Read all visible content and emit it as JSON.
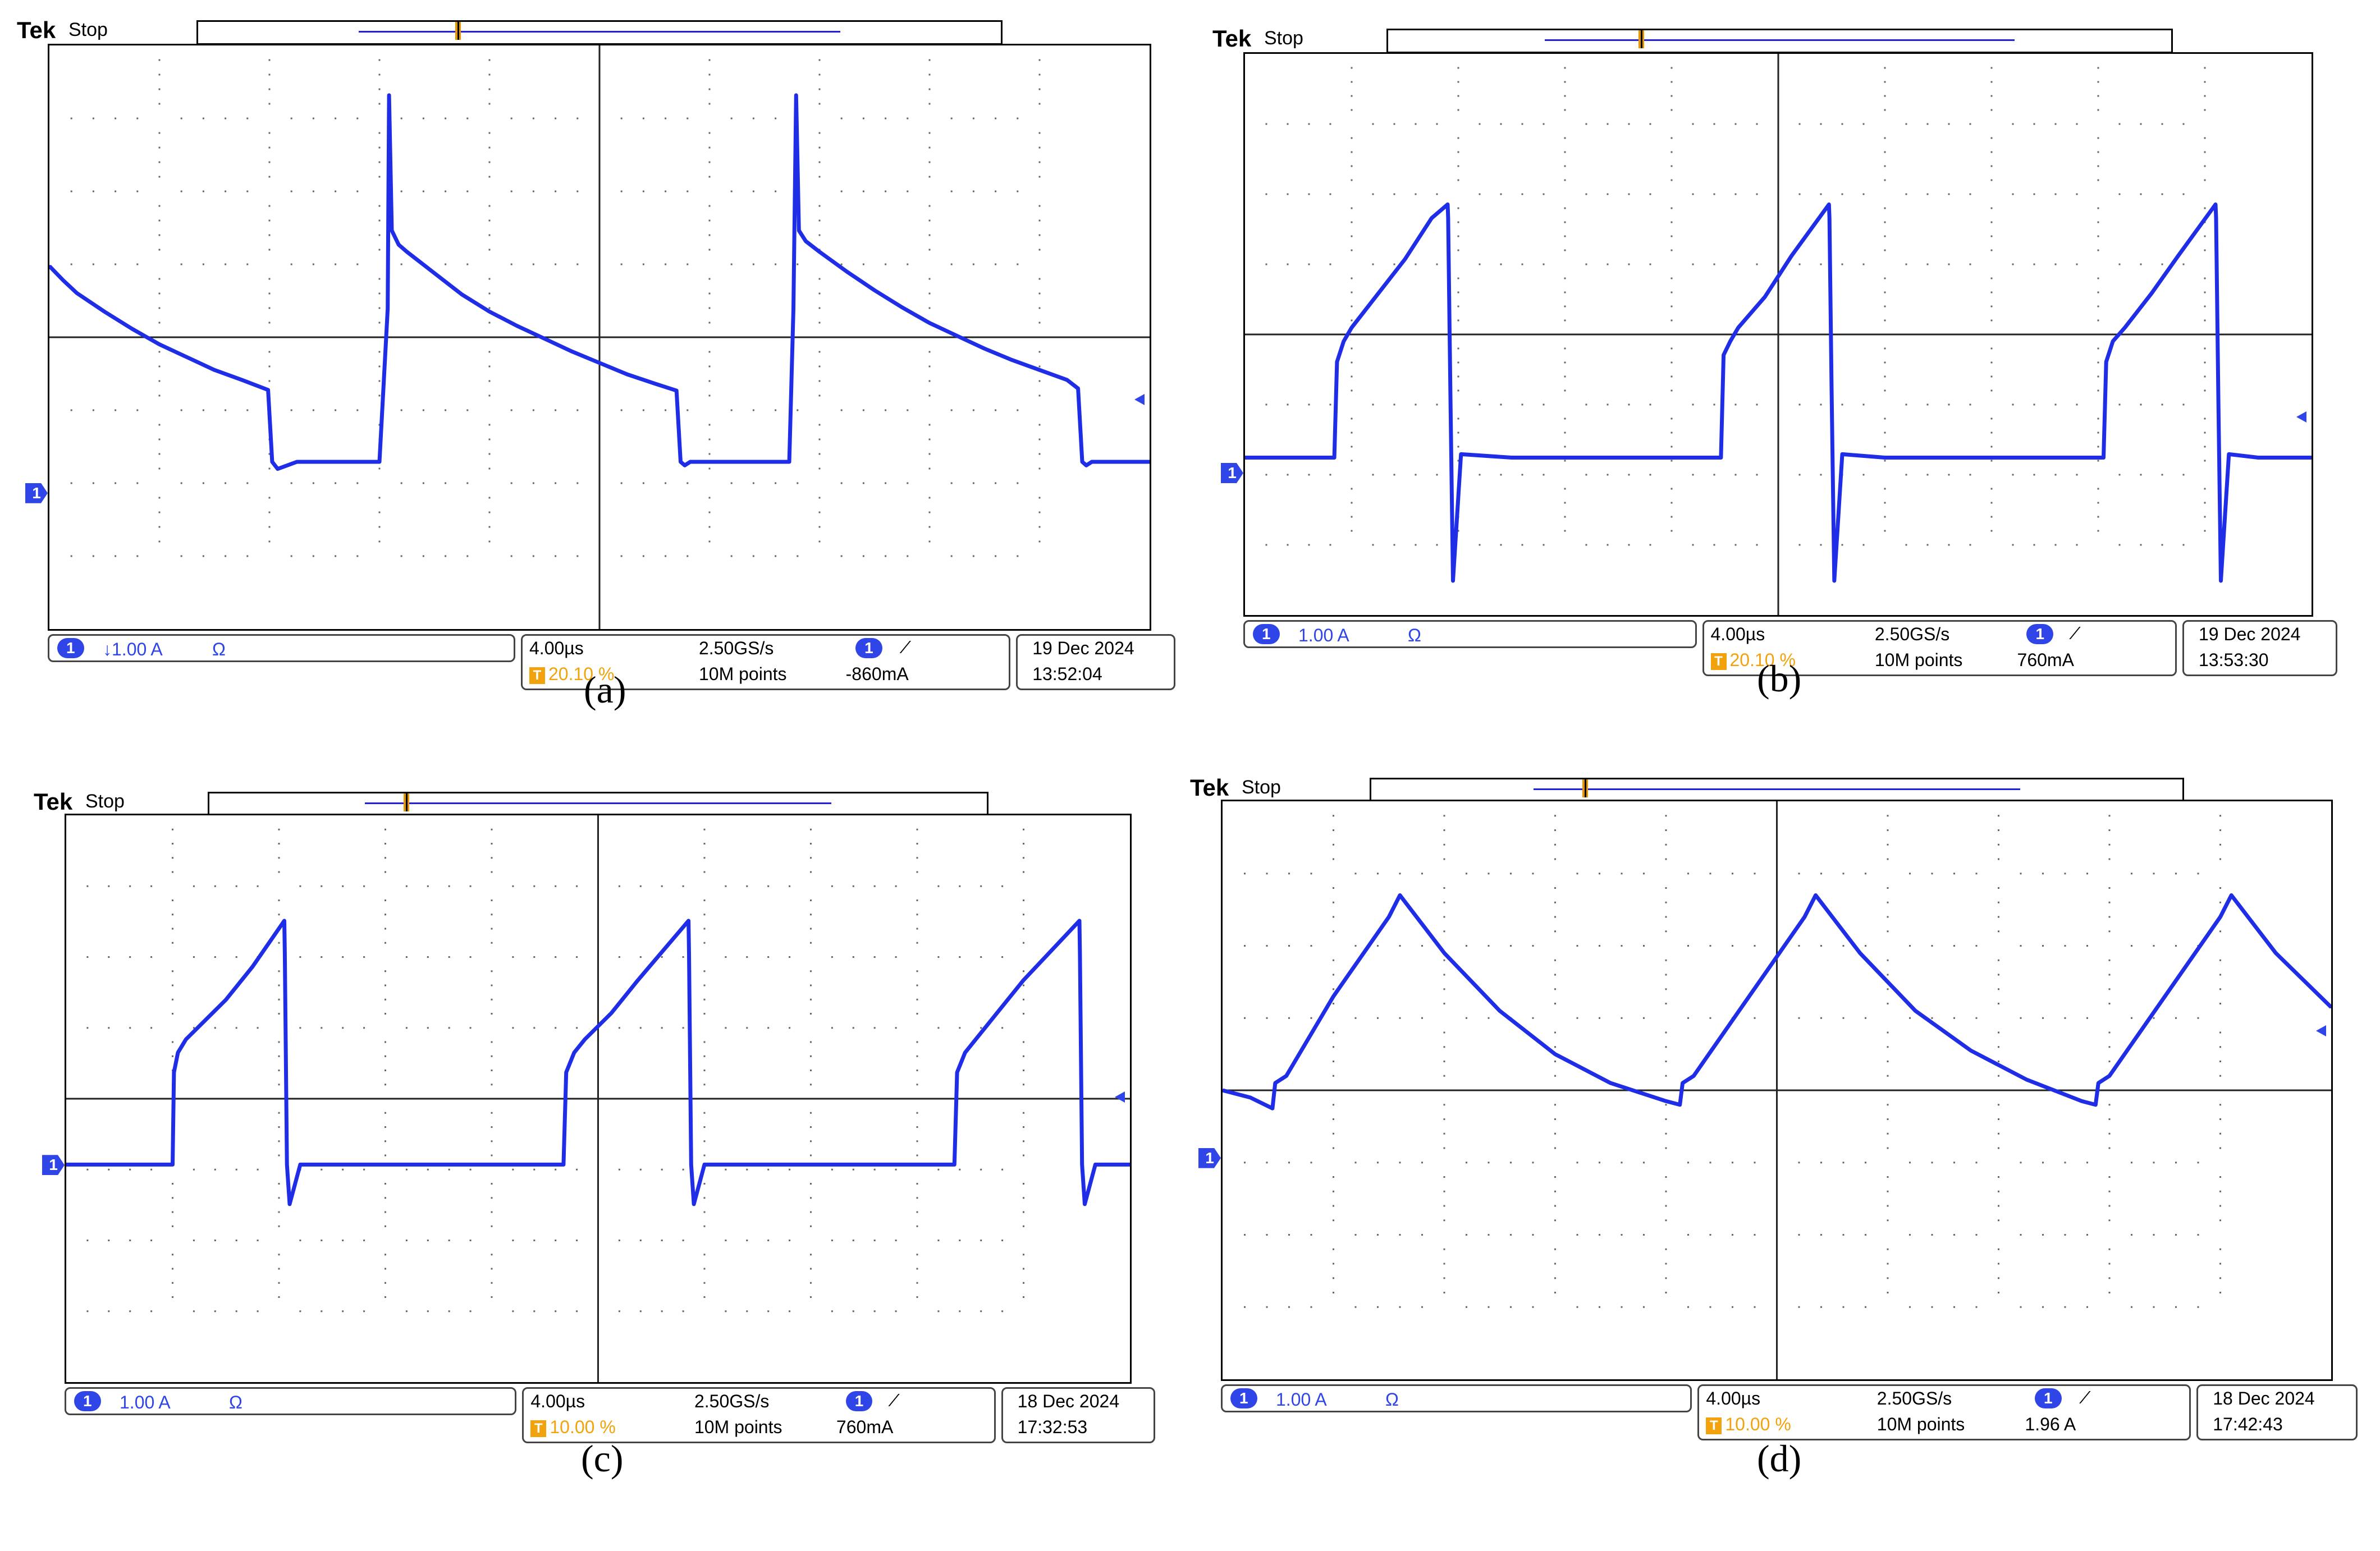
{
  "chart_data": [
    {
      "type": "line",
      "caption": "(a)",
      "header": {
        "brand": "Tek",
        "state": "Stop"
      },
      "trigger_marker": "T",
      "channel_marker": "1",
      "ch_readout": {
        "channel": "1",
        "scale": "↓1.00 A",
        "coupling": "Ω"
      },
      "timebase": {
        "time_div": "4.00µs",
        "trigger_pos": "20.10 %",
        "sample_rate": "2.50GS/s",
        "record": "10M points"
      },
      "trigger": {
        "channel": "1",
        "slope_icon": "rising-edge",
        "level": "-860mA"
      },
      "timestamp": {
        "date": "19 Dec  2024",
        "time": "13:52:04"
      },
      "xlim": [
        0,
        40
      ],
      "ylim": [
        -4.3,
        3.9
      ],
      "x": [
        0,
        0.5,
        1,
        2,
        3,
        4,
        5,
        6,
        7,
        7.95,
        8.1,
        8.3,
        9,
        10,
        11,
        12,
        12.3,
        12.35,
        12.45,
        12.7,
        13,
        14,
        15,
        16,
        17,
        18,
        19,
        20,
        21,
        22,
        22.8,
        22.95,
        23.1,
        23.3,
        24,
        25,
        26,
        26.9,
        27.05,
        27.15,
        27.25,
        27.5,
        28,
        29,
        30,
        31,
        32,
        33,
        34,
        35,
        36,
        37,
        37.4,
        37.55,
        37.7,
        37.9,
        38.5,
        40
      ],
      "y": [
        0.8,
        0.6,
        0.42,
        0.16,
        -0.08,
        -0.3,
        -0.48,
        -0.66,
        -0.8,
        -0.94,
        -1.95,
        -2.05,
        -1.95,
        -1.95,
        -1.95,
        -1.95,
        0.2,
        3.2,
        1.3,
        1.1,
        1.0,
        0.7,
        0.4,
        0.16,
        -0.04,
        -0.22,
        -0.4,
        -0.56,
        -0.72,
        -0.85,
        -0.95,
        -1.95,
        -2.0,
        -1.95,
        -1.95,
        -1.95,
        -1.95,
        -1.95,
        0.2,
        3.2,
        1.3,
        1.15,
        1.0,
        0.72,
        0.46,
        0.22,
        0.0,
        -0.18,
        -0.36,
        -0.52,
        -0.66,
        -0.8,
        -0.92,
        -1.95,
        -2.0,
        -1.95,
        -1.95,
        -1.95
      ]
    },
    {
      "type": "line",
      "caption": "(b)",
      "header": {
        "brand": "Tek",
        "state": "Stop"
      },
      "trigger_marker": "T",
      "channel_marker": "1",
      "ch_readout": {
        "channel": "1",
        "scale": "1.00 A",
        "coupling": "Ω"
      },
      "timebase": {
        "time_div": "4.00µs",
        "trigger_pos": "20.10 %",
        "sample_rate": "2.50GS/s",
        "record": "10M points"
      },
      "trigger": {
        "channel": "1",
        "slope_icon": "rising-edge",
        "level": "760mA"
      },
      "timestamp": {
        "date": "19 Dec  2024",
        "time": "13:53:30"
      },
      "xlim": [
        0,
        40
      ],
      "ylim": [
        -4.3,
        3.9
      ],
      "x": [
        0,
        3.35,
        3.45,
        3.7,
        4,
        5,
        6,
        7,
        7.6,
        7.62,
        7.7,
        7.8,
        8.1,
        10,
        12,
        14,
        17.85,
        17.95,
        18.2,
        18.5,
        19.5,
        20.5,
        21.9,
        21.92,
        22.0,
        22.1,
        22.4,
        24,
        26,
        28,
        32.2,
        32.3,
        32.55,
        33,
        34,
        35,
        36.4,
        36.42,
        36.5,
        36.6,
        36.9,
        38,
        40
      ],
      "y": [
        -2.0,
        -2.0,
        -0.6,
        -0.3,
        -0.1,
        0.4,
        0.9,
        1.5,
        1.7,
        1.5,
        -1.0,
        -3.8,
        -1.95,
        -2.0,
        -2.0,
        -2.0,
        -2.0,
        -0.5,
        -0.3,
        -0.1,
        0.35,
        0.95,
        1.7,
        1.5,
        -1.0,
        -3.8,
        -1.95,
        -2.0,
        -2.0,
        -2.0,
        -2.0,
        -0.6,
        -0.3,
        -0.1,
        0.4,
        0.95,
        1.7,
        1.5,
        -1.0,
        -3.8,
        -1.95,
        -2.0,
        -2.0
      ]
    },
    {
      "type": "line",
      "caption": "(c)",
      "header": {
        "brand": "Tek",
        "state": "Stop"
      },
      "trigger_marker": "T",
      "channel_marker": "1",
      "ch_readout": {
        "channel": "1",
        "scale": "1.00 A",
        "coupling": "Ω"
      },
      "timebase": {
        "time_div": "4.00µs",
        "trigger_pos": "10.00 %",
        "sample_rate": "2.50GS/s",
        "record": "10M points"
      },
      "trigger": {
        "channel": "1",
        "slope_icon": "rising-edge",
        "level": "760mA"
      },
      "timestamp": {
        "date": "18 Dec  2024",
        "time": "17:32:53"
      },
      "xlim": [
        0,
        40
      ],
      "ylim": [
        -4.3,
        4.3
      ],
      "x": [
        0,
        4,
        4.05,
        4.2,
        4.5,
        5,
        6,
        7,
        8.2,
        8.22,
        8.3,
        8.4,
        8.8,
        10,
        12,
        14,
        18.7,
        18.8,
        19.1,
        19.5,
        20.5,
        21.5,
        23.4,
        23.42,
        23.5,
        23.6,
        24,
        26,
        28,
        30,
        33.4,
        33.5,
        33.8,
        34.2,
        35,
        36,
        38.1,
        38.12,
        38.2,
        38.3,
        38.7,
        40
      ],
      "y": [
        -1.0,
        -1.0,
        0.4,
        0.7,
        0.9,
        1.1,
        1.5,
        2.0,
        2.7,
        2.2,
        -1.0,
        -1.6,
        -1.0,
        -1.0,
        -1.0,
        -1.0,
        -1.0,
        0.4,
        0.7,
        0.9,
        1.3,
        1.8,
        2.7,
        2.2,
        -1.0,
        -1.6,
        -1.0,
        -1.0,
        -1.0,
        -1.0,
        -1.0,
        0.4,
        0.7,
        0.9,
        1.3,
        1.8,
        2.7,
        2.2,
        -1.0,
        -1.6,
        -1.0,
        -1.0
      ]
    },
    {
      "type": "line",
      "caption": "(d)",
      "header": {
        "brand": "Tek",
        "state": "Stop"
      },
      "trigger_marker": "T",
      "channel_marker": "1",
      "ch_readout": {
        "channel": "1",
        "scale": "1.00 A",
        "coupling": "Ω"
      },
      "timebase": {
        "time_div": "4.00µs",
        "trigger_pos": "10.00 %",
        "sample_rate": "2.50GS/s",
        "record": "10M points"
      },
      "trigger": {
        "channel": "1",
        "slope_icon": "rising-edge",
        "level": "1.96 A"
      },
      "timestamp": {
        "date": "18 Dec  2024",
        "time": "17:42:43"
      },
      "xlim": [
        0,
        40
      ],
      "ylim": [
        -4.0,
        4.0
      ],
      "x": [
        0,
        1,
        1.8,
        1.9,
        2.3,
        4,
        6,
        6.4,
        8,
        10,
        12,
        14,
        16,
        16.5,
        16.6,
        17,
        19,
        21,
        21.4,
        23,
        25,
        27,
        29,
        31,
        31.5,
        31.6,
        32,
        34,
        36,
        36.4,
        38,
        40
      ],
      "y": [
        0.0,
        -0.1,
        -0.25,
        0.1,
        0.2,
        1.3,
        2.4,
        2.7,
        1.9,
        1.1,
        0.5,
        0.1,
        -0.15,
        -0.2,
        0.1,
        0.2,
        1.3,
        2.4,
        2.7,
        1.9,
        1.1,
        0.55,
        0.15,
        -0.15,
        -0.2,
        0.1,
        0.2,
        1.3,
        2.4,
        2.7,
        1.9,
        1.15
      ]
    }
  ]
}
